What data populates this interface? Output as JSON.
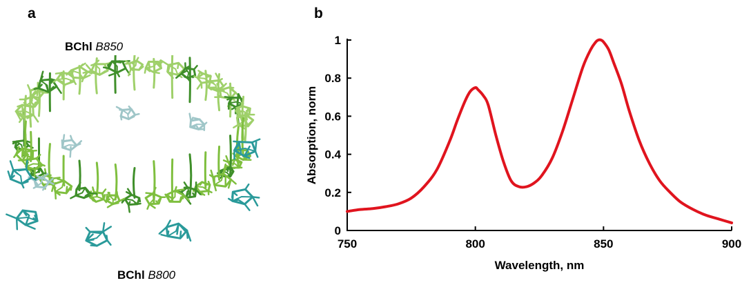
{
  "panels": {
    "a": "a",
    "b": "b"
  },
  "molecule": {
    "top_label_bold": "BChl",
    "top_label_italic": "B850",
    "bottom_label_bold": "BChl",
    "bottom_label_italic": "B800",
    "colors": {
      "b850_ring": "#7fbf3f",
      "b850_dark": "#3f8f2a",
      "b800": "#2a9a9a",
      "inner_pale": "#9fc6c8"
    }
  },
  "chart_data": {
    "type": "line",
    "xlabel": "Wavelength, nm",
    "ylabel": "Absorption, norm",
    "xlim": [
      750,
      900
    ],
    "ylim": [
      0,
      1
    ],
    "x_ticks": [
      750,
      800,
      850,
      900
    ],
    "x_tick_labels": [
      "750",
      "800",
      "850",
      "900"
    ],
    "y_ticks": [
      0,
      0.2,
      0.4,
      0.6,
      0.8,
      1
    ],
    "y_tick_labels": [
      "0",
      "0.2",
      "0.4",
      "0.6",
      "0.8",
      "1"
    ],
    "series": [
      {
        "color": "#e0141e",
        "x": [
          750,
          755,
          760,
          765,
          770,
          775,
          780,
          785,
          790,
          793,
          796,
          798,
          800,
          801,
          803,
          805,
          808,
          811,
          814,
          817,
          820,
          823,
          826,
          830,
          834,
          838,
          842,
          845,
          847,
          848,
          849,
          850,
          852,
          854,
          857,
          860,
          864,
          868,
          872,
          876,
          880,
          885,
          890,
          895,
          900
        ],
        "y": [
          0.1,
          0.11,
          0.115,
          0.125,
          0.14,
          0.17,
          0.23,
          0.32,
          0.47,
          0.58,
          0.68,
          0.73,
          0.75,
          0.74,
          0.71,
          0.66,
          0.5,
          0.36,
          0.26,
          0.23,
          0.23,
          0.25,
          0.29,
          0.38,
          0.52,
          0.69,
          0.86,
          0.95,
          0.99,
          1.0,
          1.0,
          0.99,
          0.95,
          0.88,
          0.77,
          0.63,
          0.47,
          0.35,
          0.26,
          0.2,
          0.15,
          0.11,
          0.08,
          0.06,
          0.04
        ]
      }
    ]
  }
}
